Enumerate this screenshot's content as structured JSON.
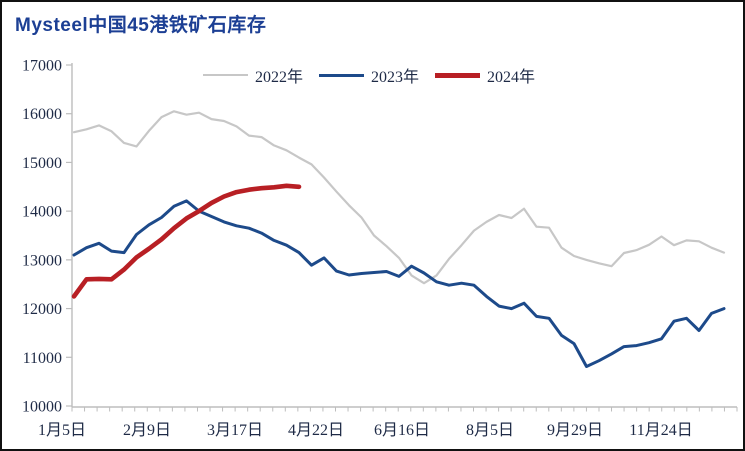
{
  "chart_data": {
    "type": "line",
    "title": "Mysteel中国45港铁矿石库存",
    "xlabel": "",
    "ylabel": "",
    "ylim": [
      10000,
      17000
    ],
    "y_ticks": [
      17000,
      16000,
      15000,
      14000,
      13000,
      12000,
      11000,
      10000
    ],
    "x_tick_labels": [
      "1月5日",
      "2月9日",
      "3月17日",
      "4月22日",
      "6月16日",
      "8月5日",
      "9月29日",
      "11月24日"
    ],
    "x_unit": "week",
    "grid": false,
    "legend_position": "top-center",
    "series": [
      {
        "name": "2022年",
        "color": "#c7c7c7",
        "line_width": 2.2,
        "values": [
          15620,
          15680,
          15760,
          15640,
          15400,
          15330,
          15650,
          15930,
          16050,
          15980,
          16020,
          15890,
          15850,
          15740,
          15550,
          15520,
          15350,
          15250,
          15100,
          14960,
          14690,
          14400,
          14120,
          13870,
          13500,
          13280,
          13040,
          12680,
          12520,
          12680,
          13020,
          13300,
          13600,
          13780,
          13920,
          13860,
          14050,
          13680,
          13660,
          13250,
          13080,
          13000,
          12930,
          12870,
          13140,
          13200,
          13310,
          13480,
          13300,
          13400,
          13380,
          13250,
          13150
        ]
      },
      {
        "name": "2023年",
        "color": "#1d4a8a",
        "line_width": 3,
        "values": [
          13100,
          13250,
          13340,
          13180,
          13150,
          13520,
          13720,
          13870,
          14100,
          14210,
          14000,
          13890,
          13780,
          13700,
          13650,
          13550,
          13400,
          13300,
          13150,
          12890,
          13040,
          12770,
          12690,
          12720,
          12740,
          12760,
          12660,
          12870,
          12730,
          12550,
          12480,
          12520,
          12480,
          12250,
          12050,
          12000,
          12110,
          11840,
          11800,
          11450,
          11280,
          10810,
          10930,
          11070,
          11220,
          11240,
          11300,
          11380,
          11740,
          11800,
          11550,
          11900,
          12000
        ]
      },
      {
        "name": "2024年",
        "color": "#b81f24",
        "line_width": 4.6,
        "values": [
          12250,
          12600,
          12610,
          12600,
          12800,
          13050,
          13230,
          13420,
          13650,
          13850,
          14000,
          14170,
          14300,
          14390,
          14440,
          14470,
          14490,
          14520,
          14500
        ]
      }
    ]
  }
}
